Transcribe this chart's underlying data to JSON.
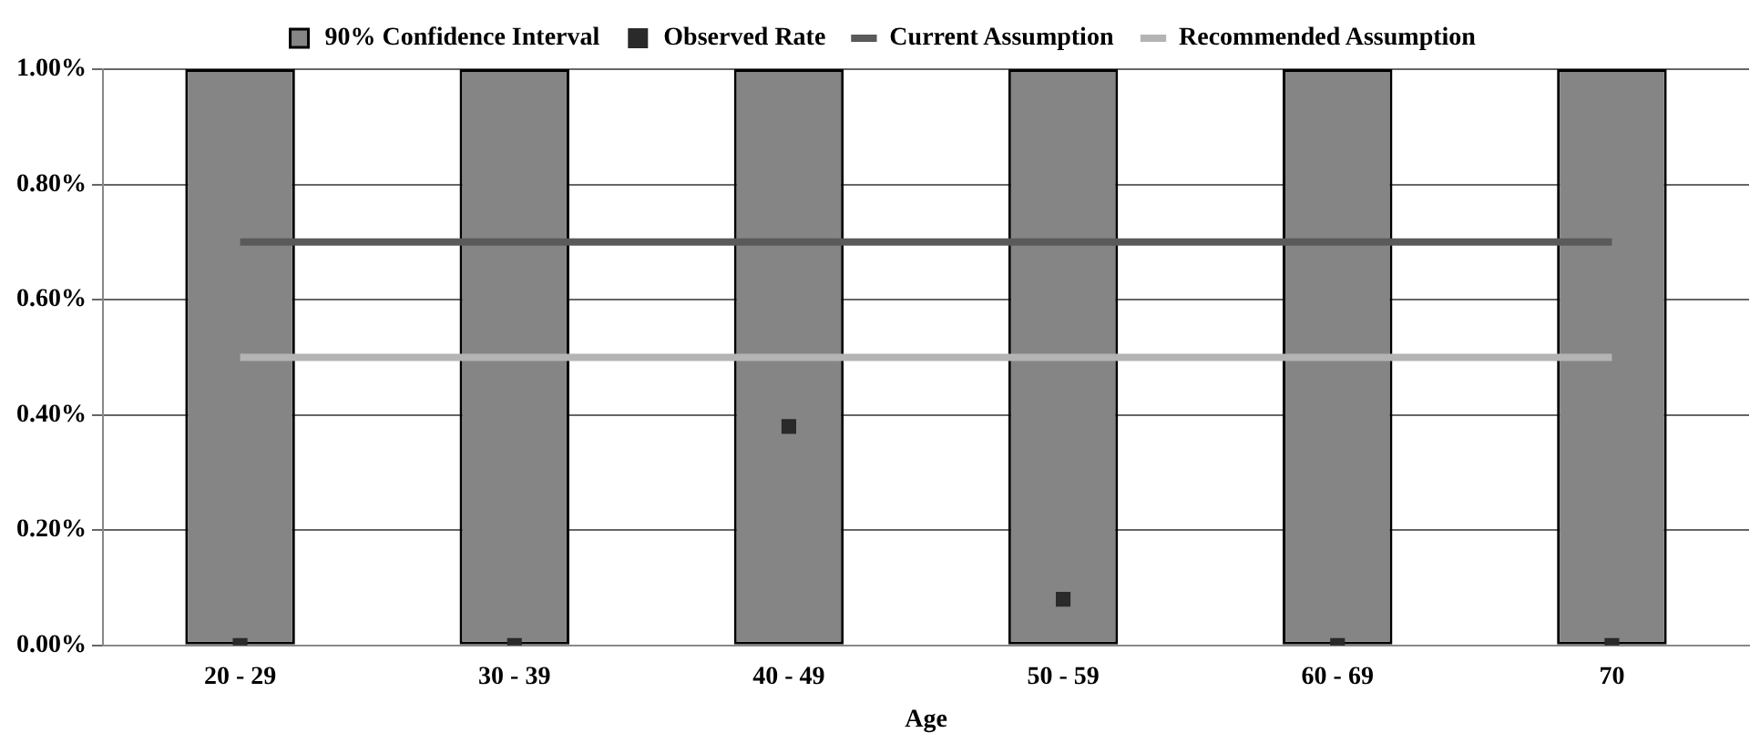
{
  "chart_data": {
    "type": "bar",
    "xlabel": "Age",
    "categories": [
      "20 - 29",
      "30 - 39",
      "40 - 49",
      "50 - 59",
      "60 - 69",
      "70"
    ],
    "series": [
      {
        "name": "90% Confidence Interval",
        "color": "#858585",
        "values": [
          1.0,
          1.0,
          1.0,
          1.0,
          1.0,
          1.0
        ]
      },
      {
        "name": "Observed Rate",
        "type": "scatter",
        "marker": "square",
        "color": "#2a2a2a",
        "x": [
          "20 - 29",
          "30 - 39",
          "40 - 49",
          "50 - 59",
          "60 - 69",
          "70"
        ],
        "values": [
          0.0,
          0.0,
          0.38,
          0.08,
          0.0,
          0.0
        ]
      },
      {
        "name": "Current Assumption",
        "type": "line",
        "color": "#5a5a5a",
        "values": [
          0.7,
          0.7,
          0.7,
          0.7,
          0.7,
          0.7
        ]
      },
      {
        "name": "Recommended Assumption",
        "type": "line",
        "color": "#b4b4b4",
        "values": [
          0.5,
          0.5,
          0.5,
          0.5,
          0.5,
          0.5
        ]
      }
    ],
    "ylim": [
      0,
      1.0
    ],
    "yticks": [
      {
        "value": 0,
        "label": "0.00%"
      },
      {
        "value": 0.2,
        "label": "0.20%"
      },
      {
        "value": 0.4,
        "label": "0.40%"
      },
      {
        "value": 0.6,
        "label": "0.60%"
      },
      {
        "value": 0.8,
        "label": "0.80%"
      },
      {
        "value": 1.0,
        "label": "1.00%"
      }
    ],
    "grid": "y",
    "legend": "top"
  }
}
